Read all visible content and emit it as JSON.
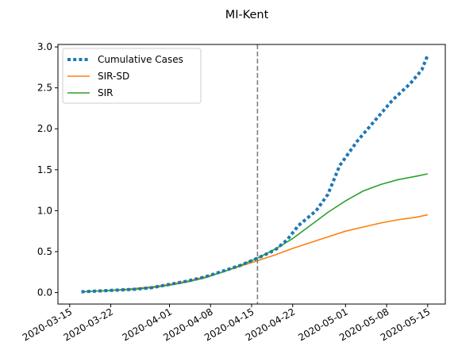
{
  "chart_data": {
    "type": "line",
    "title": "MI-Kent",
    "xlabel": "",
    "ylabel": "",
    "x_start": "2020-03-17",
    "x_end": "2020-05-15",
    "xlim": [
      "2020-03-13",
      "2020-05-18"
    ],
    "ylim": [
      -0.14,
      3.03
    ],
    "x_ticks": [
      "2020-03-15",
      "2020-03-22",
      "2020-04-01",
      "2020-04-08",
      "2020-04-15",
      "2020-04-22",
      "2020-05-01",
      "2020-05-08",
      "2020-05-15"
    ],
    "y_ticks": [
      "0.0",
      "0.5",
      "1.0",
      "1.5",
      "2.0",
      "2.5",
      "3.0"
    ],
    "vline": {
      "x": "2020-04-16",
      "style": "dashed",
      "color": "#7f7f7f"
    },
    "grid": false,
    "legend_position": "top-left",
    "series": [
      {
        "name": "Cumulative Cases",
        "color": "#1f77b4",
        "style": "dotted",
        "points": [
          [
            "2020-03-17",
            0.01
          ],
          [
            "2020-03-20",
            0.02
          ],
          [
            "2020-03-23",
            0.03
          ],
          [
            "2020-03-26",
            0.04
          ],
          [
            "2020-03-29",
            0.06
          ],
          [
            "2020-04-01",
            0.1
          ],
          [
            "2020-04-04",
            0.14
          ],
          [
            "2020-04-07",
            0.19
          ],
          [
            "2020-04-10",
            0.26
          ],
          [
            "2020-04-13",
            0.33
          ],
          [
            "2020-04-16",
            0.42
          ],
          [
            "2020-04-19",
            0.52
          ],
          [
            "2020-04-21",
            0.64
          ],
          [
            "2020-04-23",
            0.82
          ],
          [
            "2020-04-26",
            1.0
          ],
          [
            "2020-04-28",
            1.2
          ],
          [
            "2020-04-30",
            1.55
          ],
          [
            "2020-05-03",
            1.85
          ],
          [
            "2020-05-06",
            2.1
          ],
          [
            "2020-05-09",
            2.35
          ],
          [
            "2020-05-12",
            2.55
          ],
          [
            "2020-05-14",
            2.72
          ],
          [
            "2020-05-15",
            2.9
          ]
        ]
      },
      {
        "name": "SIR-SD",
        "color": "#ff7f0e",
        "style": "solid",
        "points": [
          [
            "2020-03-17",
            0.01
          ],
          [
            "2020-03-20",
            0.02
          ],
          [
            "2020-03-23",
            0.03
          ],
          [
            "2020-03-26",
            0.05
          ],
          [
            "2020-03-29",
            0.07
          ],
          [
            "2020-04-01",
            0.1
          ],
          [
            "2020-04-04",
            0.14
          ],
          [
            "2020-04-07",
            0.19
          ],
          [
            "2020-04-10",
            0.25
          ],
          [
            "2020-04-13",
            0.32
          ],
          [
            "2020-04-16",
            0.39
          ],
          [
            "2020-04-19",
            0.46
          ],
          [
            "2020-04-22",
            0.54
          ],
          [
            "2020-04-25",
            0.61
          ],
          [
            "2020-04-28",
            0.68
          ],
          [
            "2020-05-01",
            0.75
          ],
          [
            "2020-05-04",
            0.8
          ],
          [
            "2020-05-07",
            0.85
          ],
          [
            "2020-05-10",
            0.89
          ],
          [
            "2020-05-13",
            0.92
          ],
          [
            "2020-05-15",
            0.95
          ]
        ]
      },
      {
        "name": "SIR",
        "color": "#2ca02c",
        "style": "solid",
        "points": [
          [
            "2020-03-17",
            0.01
          ],
          [
            "2020-03-20",
            0.02
          ],
          [
            "2020-03-23",
            0.03
          ],
          [
            "2020-03-26",
            0.04
          ],
          [
            "2020-03-29",
            0.06
          ],
          [
            "2020-04-01",
            0.09
          ],
          [
            "2020-04-04",
            0.13
          ],
          [
            "2020-04-07",
            0.18
          ],
          [
            "2020-04-10",
            0.25
          ],
          [
            "2020-04-13",
            0.33
          ],
          [
            "2020-04-16",
            0.42
          ],
          [
            "2020-04-19",
            0.53
          ],
          [
            "2020-04-22",
            0.66
          ],
          [
            "2020-04-25",
            0.82
          ],
          [
            "2020-04-28",
            0.98
          ],
          [
            "2020-05-01",
            1.12
          ],
          [
            "2020-05-04",
            1.24
          ],
          [
            "2020-05-07",
            1.32
          ],
          [
            "2020-05-10",
            1.38
          ],
          [
            "2020-05-13",
            1.42
          ],
          [
            "2020-05-15",
            1.45
          ]
        ]
      }
    ]
  }
}
